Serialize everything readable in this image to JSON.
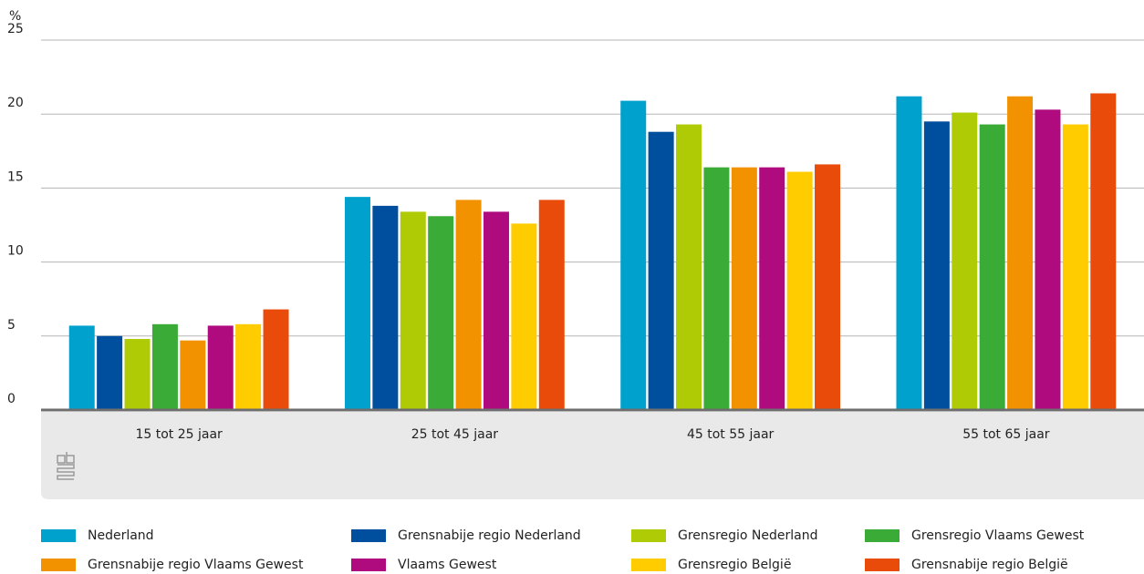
{
  "chart_data": {
    "type": "bar",
    "y_unit": "%",
    "categories": [
      "15 tot 25 jaar",
      "25 tot 45 jaar",
      "45 tot 55 jaar",
      "55 tot 65 jaar"
    ],
    "series": [
      {
        "name": "Nederland",
        "color": "#00a1cd",
        "values": [
          5.7,
          14.4,
          20.9,
          21.2
        ]
      },
      {
        "name": "Grensnabije regio Nederland",
        "color": "#004f9f",
        "values": [
          5.0,
          13.8,
          18.8,
          19.5
        ]
      },
      {
        "name": "Grensregio Nederland",
        "color": "#afcb05",
        "values": [
          4.8,
          13.4,
          19.3,
          20.1
        ]
      },
      {
        "name": "Grensregio Vlaams Gewest",
        "color": "#3aab37",
        "values": [
          5.8,
          13.1,
          16.4,
          19.3
        ]
      },
      {
        "name": "Grensnabije regio Vlaams Gewest",
        "color": "#f39200",
        "values": [
          4.7,
          14.2,
          16.4,
          21.2
        ]
      },
      {
        "name": "Vlaams Gewest",
        "color": "#af0b7e",
        "values": [
          5.7,
          13.4,
          16.4,
          20.3
        ]
      },
      {
        "name": "Grensregio België",
        "color": "#ffcc00",
        "values": [
          5.8,
          12.6,
          16.1,
          19.3
        ]
      },
      {
        "name": "Grensnabije regio België",
        "color": "#e94c0a",
        "values": [
          6.8,
          14.2,
          16.6,
          21.4
        ]
      }
    ],
    "ylim": [
      0,
      25
    ],
    "yticks": [
      0,
      5,
      10,
      15,
      20,
      25
    ],
    "grid": true,
    "legend": "bottom"
  }
}
